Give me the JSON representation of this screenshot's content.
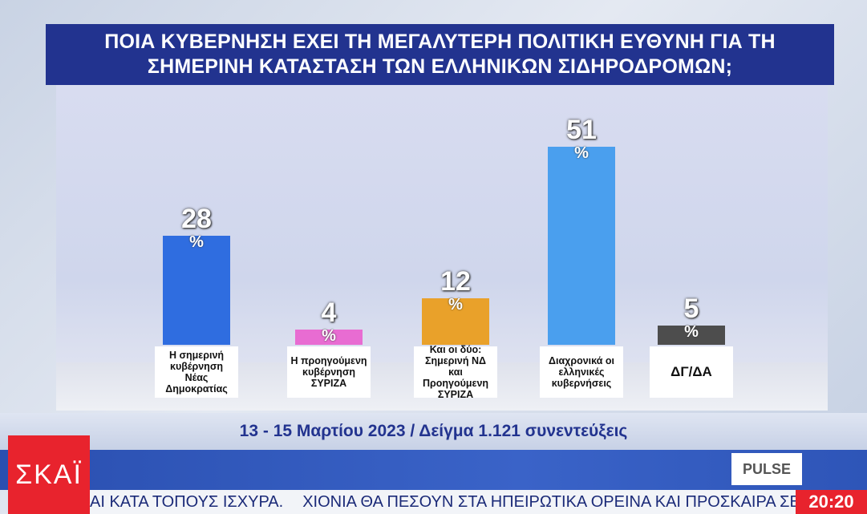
{
  "chart_data": {
    "type": "bar",
    "title": "ΠΟΙΑ ΚΥΒΕΡΝΗΣΗ ΕΧΕΙ ΤΗ ΜΕΓΑΛΥΤΕΡΗ ΠΟΛΙΤΙΚΗ ΕΥΘΥΝΗ ΓΙΑ ΤΗ ΣΗΜΕΡΙΝΗ ΚΑΤΑΣΤΑΣΗ ΤΩΝ ΕΛΛΗΝΙΚΩΝ ΣΙΔΗΡΟΔΡΟΜΩΝ;",
    "subtitle": "13 - 15 Μαρτίου 2023 / Δείγμα 1.121 συνεντεύξεις",
    "categories": [
      "Η σημερινή κυβέρνηση Νέας Δημοκρατίας",
      "Η προηγούμενη κυβέρνηση ΣΥΡΙΖΑ",
      "Και οι δύο: Σημερινή ΝΔ και Προηγούμενη ΣΥΡΙΖΑ",
      "Διαχρονικά οι ελληνικές κυβερνήσεις",
      "ΔΓ/ΔΑ"
    ],
    "values": [
      28,
      4,
      12,
      51,
      5
    ],
    "unit": "%",
    "colors": [
      "#2f6de0",
      "#e86cd2",
      "#e9a12a",
      "#4a9fee",
      "#4d4d4d"
    ]
  },
  "broadcast": {
    "channel": "ΣΚΑΪ",
    "pollster": "PULSE",
    "ticker": [
      "ΑΙ ΚΑΤΑ ΤΟΠΟΥΣ ΙΣΧΥΡΑ.",
      "ΧΙΟΝΙΑ ΘΑ ΠΕΣΟΥΝ ΣΤΑ ΗΠΕΙΡΩΤΙΚΑ ΟΡΕΙΝΑ ΚΑΙ ΠΡΟΣΚΑΙΡΑ ΣΕ Η"
    ],
    "time": "20:20"
  }
}
